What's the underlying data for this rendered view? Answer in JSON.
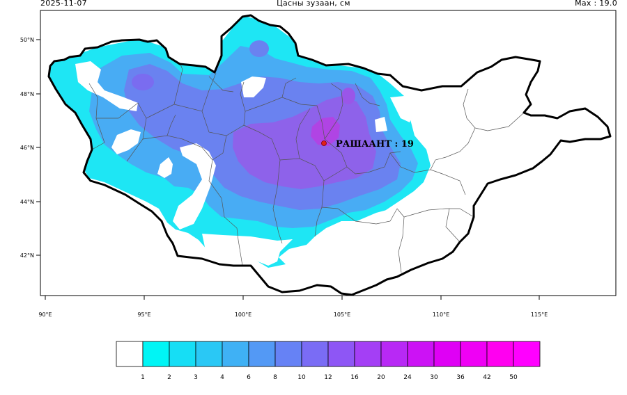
{
  "header": {
    "date": "2025-11-07",
    "title": "Цасны зузаан, см",
    "max_label": "Max : 19.0"
  },
  "map": {
    "lat_labels": [
      "50°N",
      "48°N",
      "46°N",
      "44°N",
      "42°N"
    ],
    "lon_labels": [
      "90°E",
      "95°E",
      "100°E",
      "105°E",
      "110°E",
      "115°E"
    ],
    "station": {
      "name": "РАШААНТ : 19",
      "marker_color": "#e0201a"
    }
  },
  "colorbar": {
    "labels": [
      "1",
      "2",
      "3",
      "4",
      "6",
      "8",
      "10",
      "12",
      "16",
      "20",
      "24",
      "30",
      "36",
      "42",
      "50"
    ],
    "colors": [
      "#ffffff",
      "#00f5f5",
      "#16def5",
      "#2ac8f5",
      "#3fb1f5",
      "#5399f5",
      "#6682f5",
      "#7a6cf5",
      "#8e56f5",
      "#a43ff5",
      "#b829f5",
      "#cc12f5",
      "#df00f5",
      "#ef00f5",
      "#ff00f0",
      "#ff00ff"
    ]
  },
  "colors": {
    "snow_light": "#1ee6f4",
    "snow_mid": "#48acf4",
    "snow_deep": "#6a82f0",
    "snow_deeper": "#8e62ea",
    "snow_peak": "#b044e4"
  }
}
